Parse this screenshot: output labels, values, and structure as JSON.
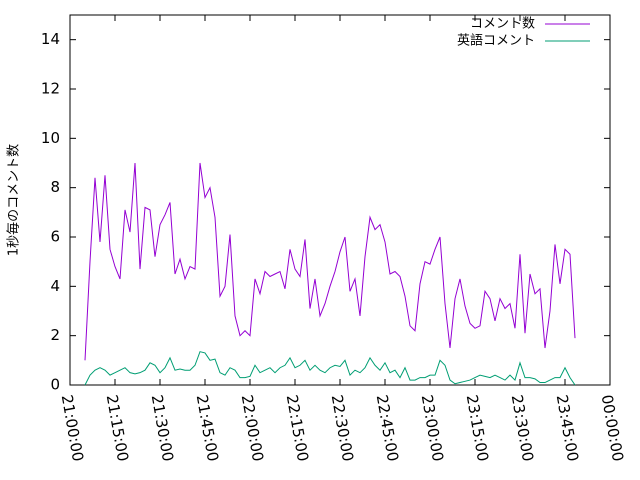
{
  "chart_data": {
    "type": "line",
    "y_label": "1秒毎のコメント数",
    "x": [
      "21:05:00",
      "21:06:40",
      "21:08:20",
      "21:10:00",
      "21:11:40",
      "21:13:20",
      "21:15:00",
      "21:16:40",
      "21:18:20",
      "21:20:00",
      "21:21:40",
      "21:23:20",
      "21:25:00",
      "21:26:40",
      "21:28:20",
      "21:30:00",
      "21:31:40",
      "21:33:20",
      "21:35:00",
      "21:36:40",
      "21:38:20",
      "21:40:00",
      "21:41:40",
      "21:43:20",
      "21:45:00",
      "21:46:40",
      "21:48:20",
      "21:50:00",
      "21:51:40",
      "21:53:20",
      "21:55:00",
      "21:56:40",
      "21:58:20",
      "22:00:00",
      "22:01:40",
      "22:03:20",
      "22:05:00",
      "22:06:40",
      "22:08:20",
      "22:10:00",
      "22:11:40",
      "22:13:20",
      "22:15:00",
      "22:16:40",
      "22:18:20",
      "22:20:00",
      "22:21:40",
      "22:23:20",
      "22:25:00",
      "22:26:40",
      "22:28:20",
      "22:30:00",
      "22:31:40",
      "22:33:20",
      "22:35:00",
      "22:36:40",
      "22:38:20",
      "22:40:00",
      "22:41:40",
      "22:43:20",
      "22:45:00",
      "22:46:40",
      "22:48:20",
      "22:50:00",
      "22:51:40",
      "22:53:20",
      "22:55:00",
      "22:56:40",
      "22:58:20",
      "23:00:00",
      "23:01:40",
      "23:03:20",
      "23:05:00",
      "23:06:40",
      "23:08:20",
      "23:10:00",
      "23:11:40",
      "23:13:20",
      "23:15:00",
      "23:16:40",
      "23:18:20",
      "23:20:00",
      "23:21:40",
      "23:23:20",
      "23:25:00",
      "23:26:40",
      "23:28:20",
      "23:30:00",
      "23:31:40",
      "23:33:20",
      "23:35:00",
      "23:36:40",
      "23:38:20",
      "23:40:00",
      "23:41:40",
      "23:43:20",
      "23:45:00",
      "23:46:40",
      "23:48:20"
    ],
    "series": [
      {
        "name": "コメント数",
        "color": "#9400d3",
        "values": [
          1.0,
          5,
          8.4,
          5.8,
          8.5,
          5.5,
          4.8,
          4.3,
          7.1,
          6.2,
          9.0,
          4.7,
          7.2,
          7.1,
          5.2,
          6.5,
          6.9,
          7.4,
          4.5,
          5.1,
          4.3,
          4.8,
          4.7,
          9.0,
          7.6,
          8.0,
          6.8,
          3.6,
          4.0,
          6.1,
          2.8,
          2.0,
          2.2,
          2.0,
          4.3,
          3.7,
          4.6,
          4.4,
          4.5,
          4.6,
          3.9,
          5.5,
          4.7,
          4.4,
          5.9,
          3.1,
          4.3,
          2.8,
          3.3,
          4.0,
          4.6,
          5.4,
          6.0,
          3.8,
          4.3,
          2.8,
          5.2,
          6.8,
          6.3,
          6.5,
          5.8,
          4.5,
          4.6,
          4.4,
          3.6,
          2.4,
          2.2,
          4.1,
          5.0,
          4.9,
          5.5,
          6.0,
          3.3,
          1.5,
          3.5,
          4.3,
          3.2,
          2.5,
          2.3,
          2.4,
          3.8,
          3.5,
          2.6,
          3.5,
          3.1,
          3.3,
          2.3,
          5.3,
          2.1,
          4.5,
          3.7,
          3.9,
          1.5,
          3.0,
          5.7,
          4.1,
          5.5,
          5.3,
          1.9
        ]
      },
      {
        "name": "英語コメント",
        "color": "#009e73",
        "values": [
          0.0,
          0.4,
          0.6,
          0.7,
          0.6,
          0.4,
          0.5,
          0.6,
          0.7,
          0.5,
          0.45,
          0.5,
          0.6,
          0.9,
          0.8,
          0.5,
          0.7,
          1.1,
          0.6,
          0.65,
          0.6,
          0.6,
          0.8,
          1.35,
          1.3,
          1.0,
          1.05,
          0.5,
          0.4,
          0.7,
          0.6,
          0.3,
          0.3,
          0.35,
          0.8,
          0.5,
          0.6,
          0.7,
          0.5,
          0.7,
          0.8,
          1.1,
          0.7,
          0.8,
          1.0,
          0.6,
          0.8,
          0.6,
          0.5,
          0.7,
          0.8,
          0.75,
          1.0,
          0.4,
          0.6,
          0.5,
          0.7,
          1.1,
          0.8,
          0.6,
          0.9,
          0.5,
          0.6,
          0.3,
          0.7,
          0.2,
          0.2,
          0.3,
          0.3,
          0.4,
          0.4,
          1.0,
          0.8,
          0.2,
          0.05,
          0.1,
          0.15,
          0.2,
          0.3,
          0.4,
          0.35,
          0.3,
          0.4,
          0.3,
          0.2,
          0.4,
          0.2,
          0.9,
          0.3,
          0.3,
          0.25,
          0.1,
          0.1,
          0.2,
          0.3,
          0.3,
          0.7,
          0.3,
          0.0
        ]
      }
    ],
    "xlim": [
      "21:00:00",
      "00:00:00"
    ],
    "xticks": [
      "21:00:00",
      "21:15:00",
      "21:30:00",
      "21:45:00",
      "22:00:00",
      "22:15:00",
      "22:30:00",
      "22:45:00",
      "23:00:00",
      "23:15:00",
      "23:30:00",
      "23:45:00",
      "00:00:00"
    ],
    "ylim": [
      0,
      15
    ],
    "yticks": [
      0,
      2,
      4,
      6,
      8,
      10,
      12,
      14
    ],
    "grid": false,
    "legend": "top-right"
  }
}
